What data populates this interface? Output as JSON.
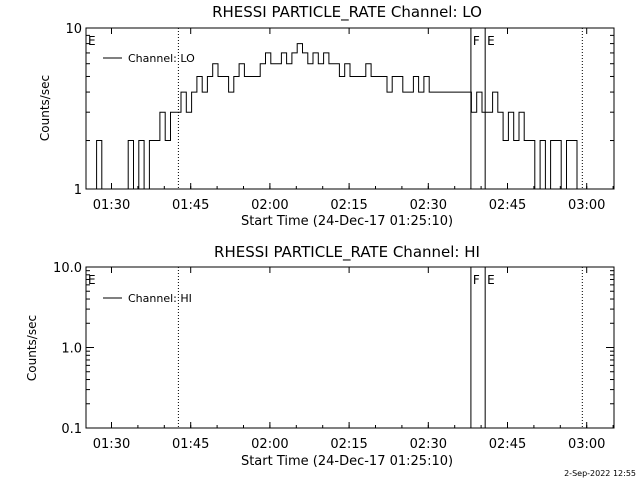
{
  "figure": {
    "footer_date": "2-Sep-2022 12:55",
    "colors": {
      "background": "#ffffff",
      "ink": "#000000"
    }
  },
  "chart_data": [
    {
      "type": "line",
      "scale": "log",
      "title": "RHESSI PARTICLE_RATE Channel: LO",
      "xlabel": "Start Time (24-Dec-17 01:25:10)",
      "ylabel": "Counts/sec",
      "x_unit": "minutes after 01:25:10",
      "xlim": [
        0,
        100
      ],
      "ylim": [
        1,
        10
      ],
      "xticks": [
        {
          "label": "01:30",
          "value": 4.83
        },
        {
          "label": "01:45",
          "value": 19.83
        },
        {
          "label": "02:00",
          "value": 34.83
        },
        {
          "label": "02:15",
          "value": 49.83
        },
        {
          "label": "02:30",
          "value": 64.83
        },
        {
          "label": "02:45",
          "value": 79.83
        },
        {
          "label": "03:00",
          "value": 94.83
        }
      ],
      "yticks": [
        {
          "label": "1",
          "value": 1
        },
        {
          "label": "10",
          "value": 10
        }
      ],
      "dotted_lines": [
        17.5,
        94.0
      ],
      "solid_lines": [
        72.9,
        75.6
      ],
      "markers": [
        {
          "text": "E",
          "value": 0
        },
        {
          "text": "F",
          "value": 72.9
        },
        {
          "text": "E",
          "value": 75.6
        }
      ],
      "legend_position": "top-left",
      "series": [
        {
          "name": "Channel: LO",
          "x": [
            0,
            1,
            2,
            3,
            4,
            5,
            6,
            7,
            8,
            9,
            10,
            11,
            12,
            13,
            14,
            15,
            16,
            17,
            18,
            19,
            20,
            21,
            22,
            23,
            24,
            25,
            26,
            27,
            28,
            29,
            30,
            31,
            32,
            33,
            34,
            35,
            36,
            37,
            38,
            39,
            40,
            41,
            42,
            43,
            44,
            45,
            46,
            47,
            48,
            49,
            50,
            51,
            52,
            53,
            54,
            55,
            56,
            57,
            58,
            59,
            60,
            61,
            62,
            63,
            64,
            65,
            66,
            67,
            68,
            69,
            70,
            71,
            72,
            73,
            74,
            75,
            76,
            77,
            78,
            79,
            80,
            81,
            82,
            83,
            84,
            85,
            86,
            87,
            88,
            89,
            90,
            91,
            92,
            93,
            94,
            95
          ],
          "values": [
            1,
            1,
            2,
            1,
            1,
            1,
            1,
            1,
            2,
            1,
            2,
            1,
            2,
            2,
            3,
            2,
            3,
            3,
            4,
            3,
            4,
            5,
            4,
            5,
            6,
            5,
            5,
            4,
            5,
            6,
            5,
            5,
            5,
            6,
            7,
            6,
            6,
            7,
            6,
            7,
            8,
            7,
            6,
            7,
            6,
            7,
            6,
            6,
            5,
            6,
            5,
            5,
            5,
            6,
            5,
            5,
            5,
            4,
            5,
            5,
            4,
            4,
            5,
            4,
            5,
            4,
            4,
            4,
            4,
            4,
            4,
            4,
            4,
            3,
            4,
            3,
            3,
            4,
            3,
            2,
            3,
            2,
            3,
            2,
            2,
            1,
            2,
            1,
            2,
            2,
            1,
            2,
            2,
            1,
            1,
            1
          ]
        }
      ]
    },
    {
      "type": "line",
      "scale": "log",
      "title": "RHESSI PARTICLE_RATE Channel: HI",
      "xlabel": "Start Time (24-Dec-17 01:25:10)",
      "ylabel": "Counts/sec",
      "x_unit": "minutes after 01:25:10",
      "xlim": [
        0,
        100
      ],
      "ylim": [
        0.1,
        10
      ],
      "xticks": [
        {
          "label": "01:30",
          "value": 4.83
        },
        {
          "label": "01:45",
          "value": 19.83
        },
        {
          "label": "02:00",
          "value": 34.83
        },
        {
          "label": "02:15",
          "value": 49.83
        },
        {
          "label": "02:30",
          "value": 64.83
        },
        {
          "label": "02:45",
          "value": 79.83
        },
        {
          "label": "03:00",
          "value": 94.83
        }
      ],
      "yticks": [
        {
          "label": "0.1",
          "value": 0.1
        },
        {
          "label": "1.0",
          "value": 1
        },
        {
          "label": "10.0",
          "value": 10
        }
      ],
      "dotted_lines": [
        17.5,
        94.0
      ],
      "solid_lines": [
        72.9,
        75.6
      ],
      "markers": [
        {
          "text": "E",
          "value": 0
        },
        {
          "text": "F",
          "value": 72.9
        },
        {
          "text": "E",
          "value": 75.6
        }
      ],
      "legend_position": "top-left",
      "series": [
        {
          "name": "Channel: HI",
          "x": [],
          "values": []
        }
      ]
    }
  ]
}
